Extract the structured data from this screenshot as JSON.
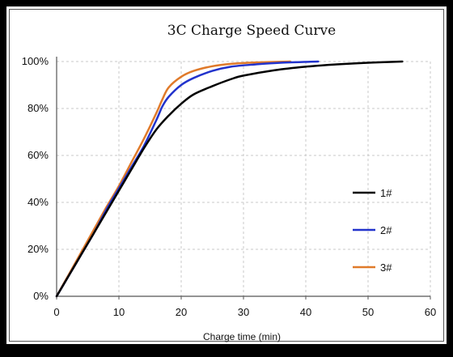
{
  "chart_data": {
    "type": "line",
    "title": "3C Charge Speed Curve",
    "xlabel": "Charge time (min)",
    "ylabel": "",
    "xlim": [
      0,
      60
    ],
    "ylim": [
      0,
      100
    ],
    "x_ticks": [
      "0",
      "10",
      "20",
      "30",
      "40",
      "50",
      "60"
    ],
    "y_ticks": [
      "0%",
      "20%",
      "40%",
      "60%",
      "80%",
      "100%"
    ],
    "grid": true,
    "legend_position": "right",
    "series": [
      {
        "name": "1#",
        "color": "#000000",
        "x": [
          0,
          2,
          4,
          6,
          8,
          10,
          12,
          14,
          16,
          18,
          20,
          22,
          25,
          28,
          30,
          35,
          40,
          45,
          50,
          55.5
        ],
        "y": [
          0,
          9,
          18,
          27,
          36,
          45,
          54,
          63,
          71,
          77,
          82,
          86,
          89.5,
          92.5,
          94,
          96.3,
          97.8,
          98.8,
          99.5,
          100
        ]
      },
      {
        "name": "2#",
        "color": "#2233cc",
        "x": [
          0,
          2,
          4,
          6,
          8,
          10,
          12,
          14,
          16,
          17,
          18,
          20,
          22,
          25,
          28,
          32,
          36,
          42
        ],
        "y": [
          0,
          9,
          18,
          27,
          37,
          46,
          55,
          64,
          75,
          81,
          85,
          90,
          93,
          96,
          97.8,
          98.8,
          99.5,
          100
        ]
      },
      {
        "name": "3#",
        "color": "#e07a2a",
        "x": [
          0,
          2,
          4,
          6,
          8,
          10,
          12,
          14,
          16,
          17,
          18,
          20,
          22,
          25,
          28,
          32,
          37.5
        ],
        "y": [
          0,
          9.5,
          19,
          28.5,
          38,
          47,
          57,
          67,
          78,
          84,
          89,
          93.5,
          96,
          98,
          99,
          99.6,
          100
        ]
      }
    ]
  }
}
